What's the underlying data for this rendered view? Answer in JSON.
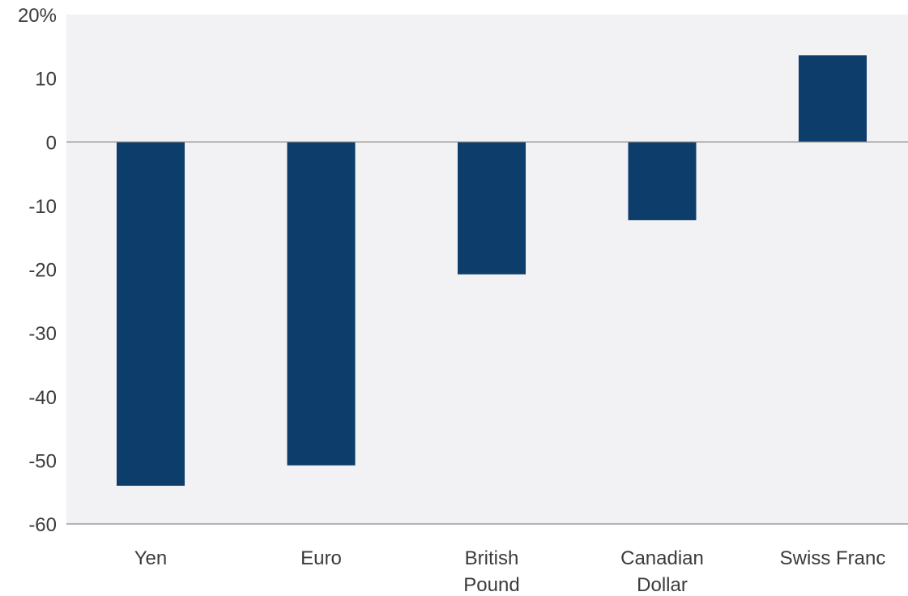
{
  "chart_data": {
    "type": "bar",
    "title": "",
    "xlabel": "",
    "ylabel": "",
    "categories": [
      [
        "Yen"
      ],
      [
        "Euro"
      ],
      [
        "British",
        "Pound"
      ],
      [
        "Canadian",
        "Dollar"
      ],
      [
        "Swiss Franc"
      ]
    ],
    "values": [
      -54,
      -50.8,
      -20.8,
      -12.3,
      13.6
    ],
    "ylim": [
      -60,
      20
    ],
    "yticks": [
      20,
      10,
      0,
      -10,
      -20,
      -30,
      -40,
      -50,
      -60
    ],
    "ytick_labels": [
      "20%",
      "10",
      "0",
      "-10",
      "-20",
      "-30",
      "-40",
      "-50",
      "-60"
    ],
    "grid": false,
    "colors": {
      "bar": "#0d3d6b",
      "plot_background": "#f2f2f4",
      "zero_line": "#8a8a8a",
      "text": "#3b3b3b"
    }
  }
}
